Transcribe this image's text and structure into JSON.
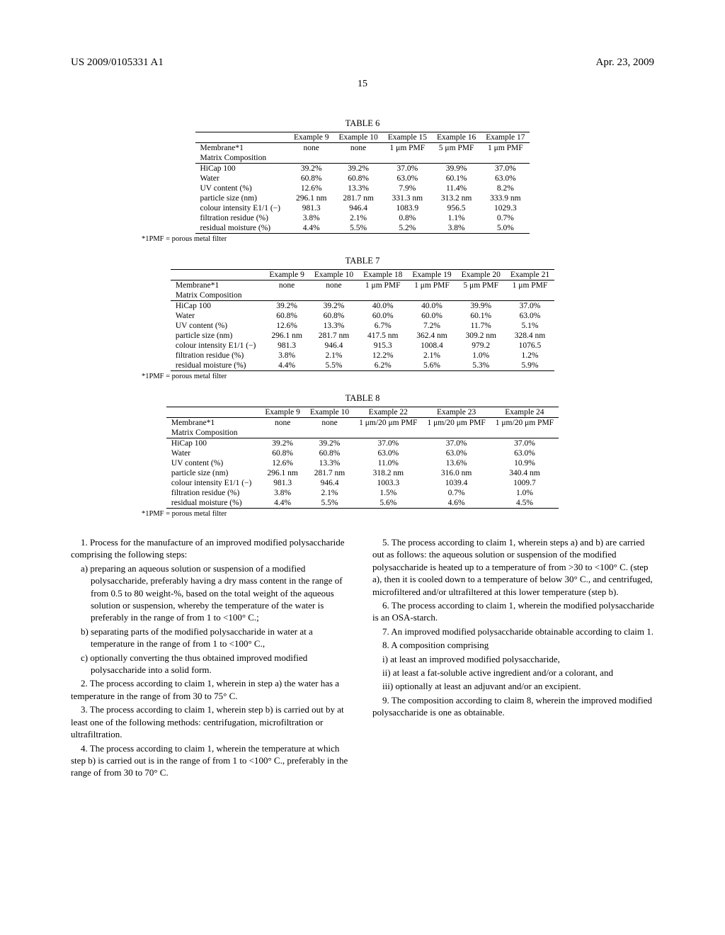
{
  "header": {
    "patent_no": "US 2009/0105331 A1",
    "date": "Apr. 23, 2009",
    "page": "15"
  },
  "footnote_text": "*1PMF = porous metal filter",
  "tables": {
    "t6": {
      "caption": "TABLE 6",
      "columns": [
        "",
        "Example 9",
        "Example 10",
        "Example 15",
        "Example 16",
        "Example 17"
      ],
      "section_rows": [
        [
          "Membrane*1",
          "none",
          "none",
          "1 μm PMF",
          "5 μm PMF",
          "1 μm PMF"
        ],
        [
          "Matrix Composition",
          "",
          "",
          "",
          "",
          ""
        ]
      ],
      "body_rows": [
        [
          "HiCap 100",
          "39.2%",
          "39.2%",
          "37.0%",
          "39.9%",
          "37.0%"
        ],
        [
          "Water",
          "60.8%",
          "60.8%",
          "63.0%",
          "60.1%",
          "63.0%"
        ],
        [
          "UV content (%)",
          "12.6%",
          "13.3%",
          "7.9%",
          "11.4%",
          "8.2%"
        ],
        [
          "particle size (nm)",
          "296.1 nm",
          "281.7 nm",
          "331.3 nm",
          "313.2 nm",
          "333.9 nm"
        ],
        [
          "colour intensity E1/1 (−)",
          "981.3",
          "946.4",
          "1083.9",
          "956.5",
          "1029.3"
        ],
        [
          "filtration residue (%)",
          "3.8%",
          "2.1%",
          "0.8%",
          "1.1%",
          "0.7%"
        ],
        [
          "residual moisture (%)",
          "4.4%",
          "5.5%",
          "5.2%",
          "3.8%",
          "5.0%"
        ]
      ]
    },
    "t7": {
      "caption": "TABLE 7",
      "columns": [
        "",
        "Example 9",
        "Example 10",
        "Example 18",
        "Example 19",
        "Example 20",
        "Example 21"
      ],
      "section_rows": [
        [
          "Membrane*1",
          "none",
          "none",
          "1 μm PMF",
          "1 μm PMF",
          "5 μm PMF",
          "1 μm PMF"
        ],
        [
          "Matrix Composition",
          "",
          "",
          "",
          "",
          "",
          ""
        ]
      ],
      "body_rows": [
        [
          "HiCap 100",
          "39.2%",
          "39.2%",
          "40.0%",
          "40.0%",
          "39.9%",
          "37.0%"
        ],
        [
          "Water",
          "60.8%",
          "60.8%",
          "60.0%",
          "60.0%",
          "60.1%",
          "63.0%"
        ],
        [
          "UV content (%)",
          "12.6%",
          "13.3%",
          "6.7%",
          "7.2%",
          "11.7%",
          "5.1%"
        ],
        [
          "particle size (nm)",
          "296.1 nm",
          "281.7 nm",
          "417.5 nm",
          "362.4 nm",
          "309.2 nm",
          "328.4 nm"
        ],
        [
          "colour intensity E1/1 (−)",
          "981.3",
          "946.4",
          "915.3",
          "1008.4",
          "979.2",
          "1076.5"
        ],
        [
          "filtration residue (%)",
          "3.8%",
          "2.1%",
          "12.2%",
          "2.1%",
          "1.0%",
          "1.2%"
        ],
        [
          "residual moisture (%)",
          "4.4%",
          "5.5%",
          "6.2%",
          "5.6%",
          "5.3%",
          "5.9%"
        ]
      ]
    },
    "t8": {
      "caption": "TABLE 8",
      "columns": [
        "",
        "Example 9",
        "Example 10",
        "Example 22",
        "Example 23",
        "Example 24"
      ],
      "section_rows": [
        [
          "Membrane*1",
          "none",
          "none",
          "1 μm/20 μm PMF",
          "1 μm/20 μm PMF",
          "1 μm/20 μm PMF"
        ],
        [
          "Matrix Composition",
          "",
          "",
          "",
          "",
          ""
        ]
      ],
      "body_rows": [
        [
          "HiCap 100",
          "39.2%",
          "39.2%",
          "37.0%",
          "37.0%",
          "37.0%"
        ],
        [
          "Water",
          "60.8%",
          "60.8%",
          "63.0%",
          "63.0%",
          "63.0%"
        ],
        [
          "UV content (%)",
          "12.6%",
          "13.3%",
          "11.0%",
          "13.6%",
          "10.9%"
        ],
        [
          "particle size (nm)",
          "296.1 nm",
          "281.7 nm",
          "318.2 nm",
          "316.0 nm",
          "340.4 nm"
        ],
        [
          "colour intensity E1/1 (−)",
          "981.3",
          "946.4",
          "1003.3",
          "1039.4",
          "1009.7"
        ],
        [
          "filtration residue (%)",
          "3.8%",
          "2.1%",
          "1.5%",
          "0.7%",
          "1.0%"
        ],
        [
          "residual moisture (%)",
          "4.4%",
          "5.5%",
          "5.6%",
          "4.6%",
          "4.5%"
        ]
      ]
    }
  },
  "claims": {
    "left": [
      {
        "cls": "para",
        "text": "1. Process for the manufacture of an improved modified polysaccharide comprising the following steps:"
      },
      {
        "cls": "subpara",
        "text": "a) preparing an aqueous solution or suspension of a modified polysaccharide, preferably having a dry mass content in the range of from 0.5 to 80 weight-%, based on the total weight of the aqueous solution or suspension, whereby the temperature of the water is preferably in the range of from 1 to <100° C.;"
      },
      {
        "cls": "subpara",
        "text": "b) separating parts of the modified polysaccharide in water at a temperature in the range of from 1 to <100° C.,"
      },
      {
        "cls": "subpara",
        "text": "c) optionally converting the thus obtained improved modified polysaccharide into a solid form."
      },
      {
        "cls": "para",
        "text": "2. The process according to claim 1, wherein in step a) the water has a temperature in the range of from 30 to 75° C."
      },
      {
        "cls": "para",
        "text": "3. The process according to claim 1, wherein step b) is carried out by at least one of the following methods: centrifugation, microfiltration or ultrafiltration."
      },
      {
        "cls": "para",
        "text": "4. The process according to claim 1, wherein the temperature at which step b) is carried out is in the range of from 1 to <100° C., preferably in the range of from 30 to 70° C."
      }
    ],
    "right": [
      {
        "cls": "para",
        "text": "5. The process according to claim 1, wherein steps a) and b) are carried out as follows: the aqueous solution or suspension of the modified polysaccharide is heated up to a temperature of from >30 to <100° C. (step a), then it is cooled down to a temperature of below 30° C., and centrifuged, microfiltered and/or ultrafiltered at this lower temperature (step b)."
      },
      {
        "cls": "para",
        "text": "6. The process according to claim 1, wherein the modified polysaccharide is an OSA-starch."
      },
      {
        "cls": "para",
        "text": "7. An improved modified polysaccharide obtainable according to claim 1."
      },
      {
        "cls": "para",
        "text": "8. A composition comprising"
      },
      {
        "cls": "subpara",
        "text": "i) at least an improved modified polysaccharide,"
      },
      {
        "cls": "subpara",
        "text": "ii) at least a fat-soluble active ingredient and/or a colorant, and"
      },
      {
        "cls": "subpara",
        "text": "iii) optionally at least an adjuvant and/or an excipient."
      },
      {
        "cls": "para",
        "text": "9. The composition according to claim 8, wherein the improved modified polysaccharide is one as obtainable."
      }
    ]
  }
}
